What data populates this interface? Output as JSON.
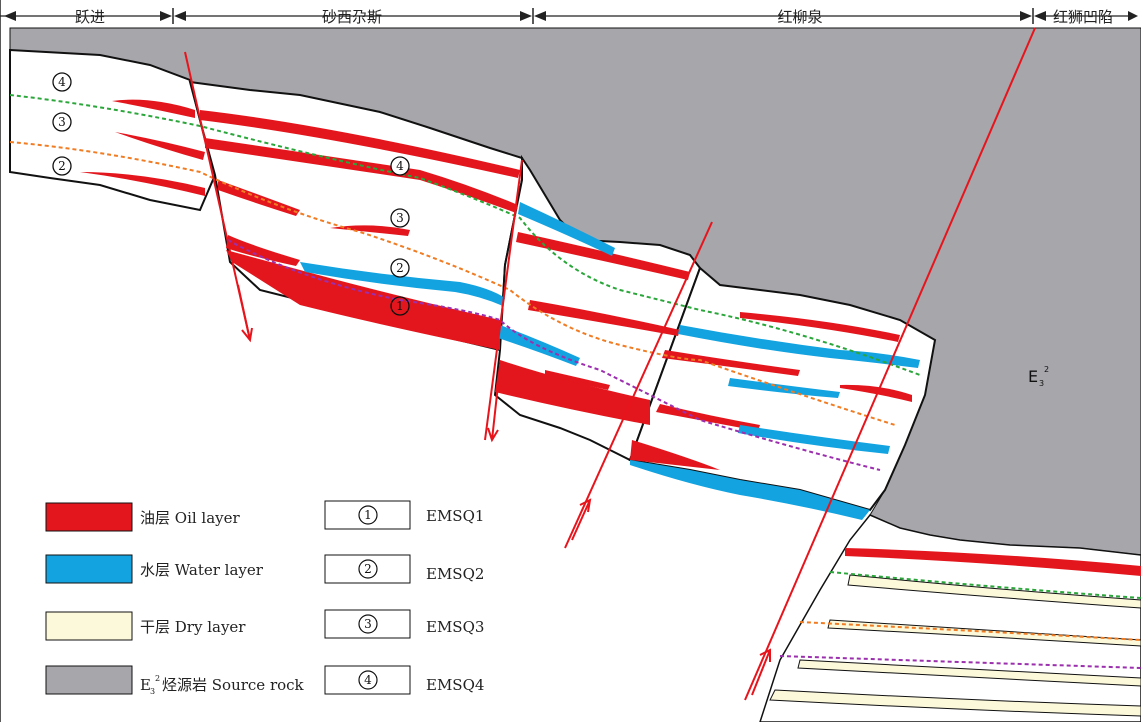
{
  "header": {
    "regions": [
      "跃进",
      "砂西尕斯",
      "红柳泉",
      "红狮凹陷"
    ]
  },
  "colors": {
    "oil": "#e3161d",
    "water": "#12a3e0",
    "dry": "#fcf9db",
    "source": "#a7a6ab",
    "fault": "#e8141c",
    "sq2_line": "#f07c23",
    "sq3_line": "#2aa63a",
    "sq1_line": "#9b2fae"
  },
  "formation_label": {
    "main": "E",
    "sub": "3",
    "sup": "2"
  },
  "sequence_markers": [
    "4",
    "3",
    "2",
    "4",
    "3",
    "2",
    "1"
  ],
  "legend": {
    "lithology": [
      {
        "key": "oil",
        "label": "油层 Oil layer"
      },
      {
        "key": "water",
        "label": "水层 Water layer"
      },
      {
        "key": "dry",
        "label": "干层 Dry layer"
      },
      {
        "key": "source",
        "label_main": "E",
        "label_sub": "3",
        "label_sup": "2",
        "label_rest": "烃源岩 Source rock"
      }
    ],
    "sequences": [
      {
        "num": "1",
        "label": "EMSQ1"
      },
      {
        "num": "2",
        "label": "EMSQ2"
      },
      {
        "num": "3",
        "label": "EMSQ3"
      },
      {
        "num": "4",
        "label": "EMSQ4"
      }
    ]
  }
}
